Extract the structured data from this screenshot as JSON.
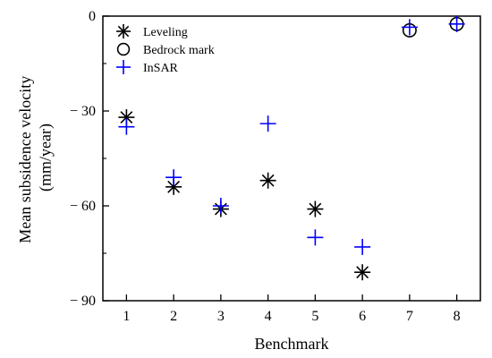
{
  "chart_data": {
    "type": "scatter",
    "title": "",
    "xlabel": "Benchmark",
    "ylabel_lines": [
      "Mean subsidence velocity",
      "(mm/year)"
    ],
    "xlim": [
      0.5,
      8.5
    ],
    "ylim": [
      -90,
      0
    ],
    "xticks": [
      1,
      2,
      3,
      4,
      5,
      6,
      7,
      8
    ],
    "xtick_labels": [
      "1",
      "2",
      "3",
      "4",
      "5",
      "6",
      "7",
      "8"
    ],
    "yticks": [
      0,
      -30,
      -60,
      -90
    ],
    "ytick_labels": [
      "0",
      "− 30",
      "− 60",
      "− 90"
    ],
    "grid": false,
    "legend_position": "top-left",
    "series": [
      {
        "name": "Leveling",
        "marker": "asterisk",
        "color": "#000000",
        "points": [
          {
            "x": 1,
            "y": -32
          },
          {
            "x": 2,
            "y": -54
          },
          {
            "x": 3,
            "y": -61
          },
          {
            "x": 4,
            "y": -52
          },
          {
            "x": 5,
            "y": -61
          },
          {
            "x": 6,
            "y": -81
          }
        ]
      },
      {
        "name": "Bedrock mark",
        "marker": "circle",
        "color": "#000000",
        "points": [
          {
            "x": 7,
            "y": -4.5
          },
          {
            "x": 8,
            "y": -2.5
          }
        ]
      },
      {
        "name": "InSAR",
        "marker": "plus",
        "color": "#0000ff",
        "points": [
          {
            "x": 1,
            "y": -35
          },
          {
            "x": 2,
            "y": -51
          },
          {
            "x": 3,
            "y": -60
          },
          {
            "x": 4,
            "y": -34
          },
          {
            "x": 5,
            "y": -70
          },
          {
            "x": 6,
            "y": -73
          },
          {
            "x": 7,
            "y": -3.5
          },
          {
            "x": 8,
            "y": -2.5
          }
        ]
      }
    ]
  }
}
